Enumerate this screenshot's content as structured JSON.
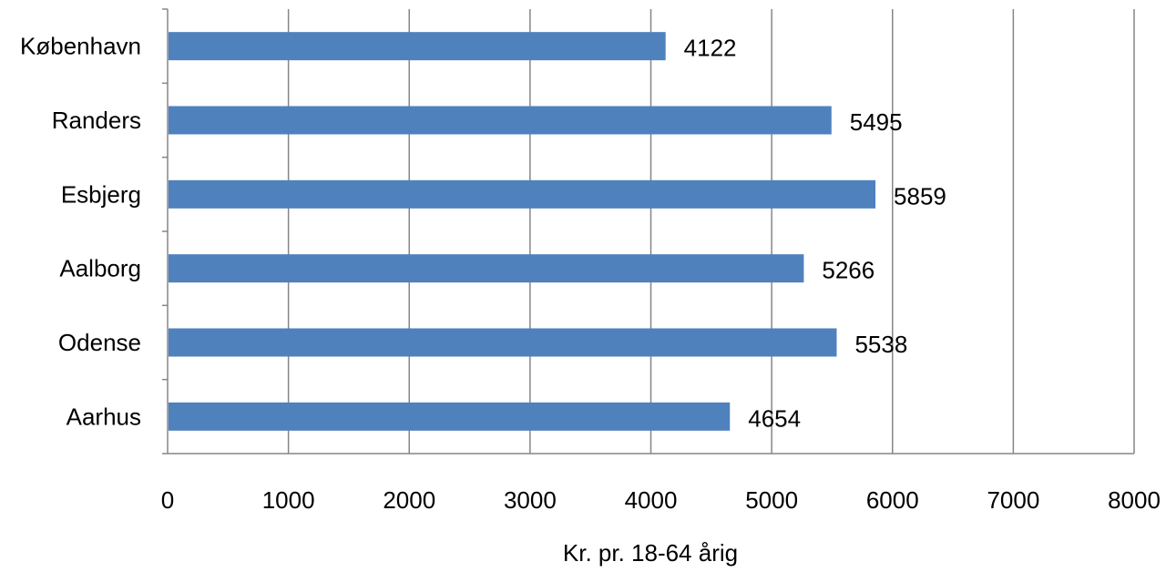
{
  "chart_data": {
    "type": "bar",
    "orientation": "horizontal",
    "title": "",
    "xlabel": "Kr. pr. 18-64 årig",
    "ylabel": "",
    "xlim": [
      0,
      8000
    ],
    "x_ticks": [
      0,
      1000,
      2000,
      3000,
      4000,
      5000,
      6000,
      7000,
      8000
    ],
    "grid": "vertical",
    "legend": "none",
    "categories": [
      "København",
      "Randers",
      "Esbjerg",
      "Aalborg",
      "Odense",
      "Aarhus"
    ],
    "values": [
      4122,
      5495,
      5859,
      5266,
      5538,
      4654
    ],
    "data_labels": [
      "4122",
      "5495",
      "5859",
      "5266",
      "5538",
      "4654"
    ],
    "bar_color": "#4f81bd",
    "grid_color": "#868686"
  }
}
